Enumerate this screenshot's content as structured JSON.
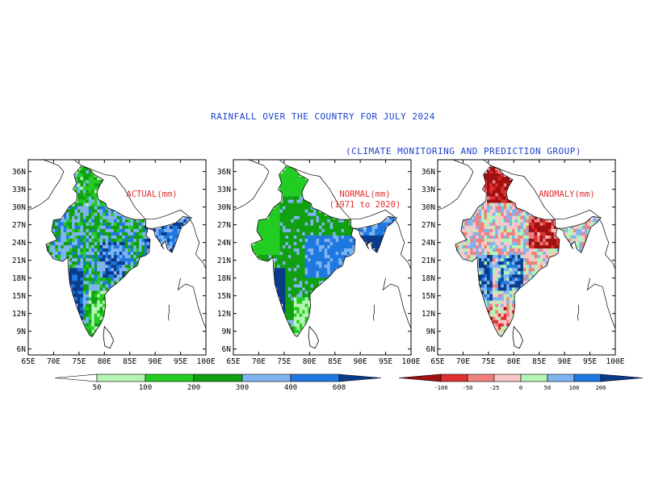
{
  "title": "RAINFALL OVER THE COUNTRY FOR JULY 2024",
  "subtitle": "(CLIMATE MONITORING AND PREDICTION GROUP)",
  "lat_labels": [
    "36N",
    "33N",
    "30N",
    "27N",
    "24N",
    "21N",
    "18N",
    "15N",
    "12N",
    "9N",
    "6N"
  ],
  "lon_labels": [
    "65E",
    "70E",
    "75E",
    "80E",
    "85E",
    "90E",
    "95E",
    "100E"
  ],
  "panels": [
    {
      "label_lines": [
        "ACTUAL(mm)"
      ]
    },
    {
      "label_lines": [
        "NORMAL(mm)",
        "(1971 to 2020)"
      ]
    },
    {
      "label_lines": [
        "ANOMALY(mm)"
      ]
    }
  ],
  "label_color": "#e03030",
  "legend_rainfall": {
    "ticks": [
      "50",
      "100",
      "200",
      "300",
      "400",
      "600"
    ],
    "colors": [
      "#ffffff",
      "#b4f5b4",
      "#22cc22",
      "#10a010",
      "#80b4f0",
      "#1f78e0",
      "#0a3c8c"
    ]
  },
  "legend_anomaly": {
    "ticks": [
      "-100",
      "-50",
      "-25",
      "0",
      "50",
      "100",
      "200"
    ],
    "colors": [
      "#a01010",
      "#e03030",
      "#f08080",
      "#f8c8c8",
      "#b4f5b4",
      "#80b4f0",
      "#1f78e0",
      "#0a3c8c"
    ]
  }
}
